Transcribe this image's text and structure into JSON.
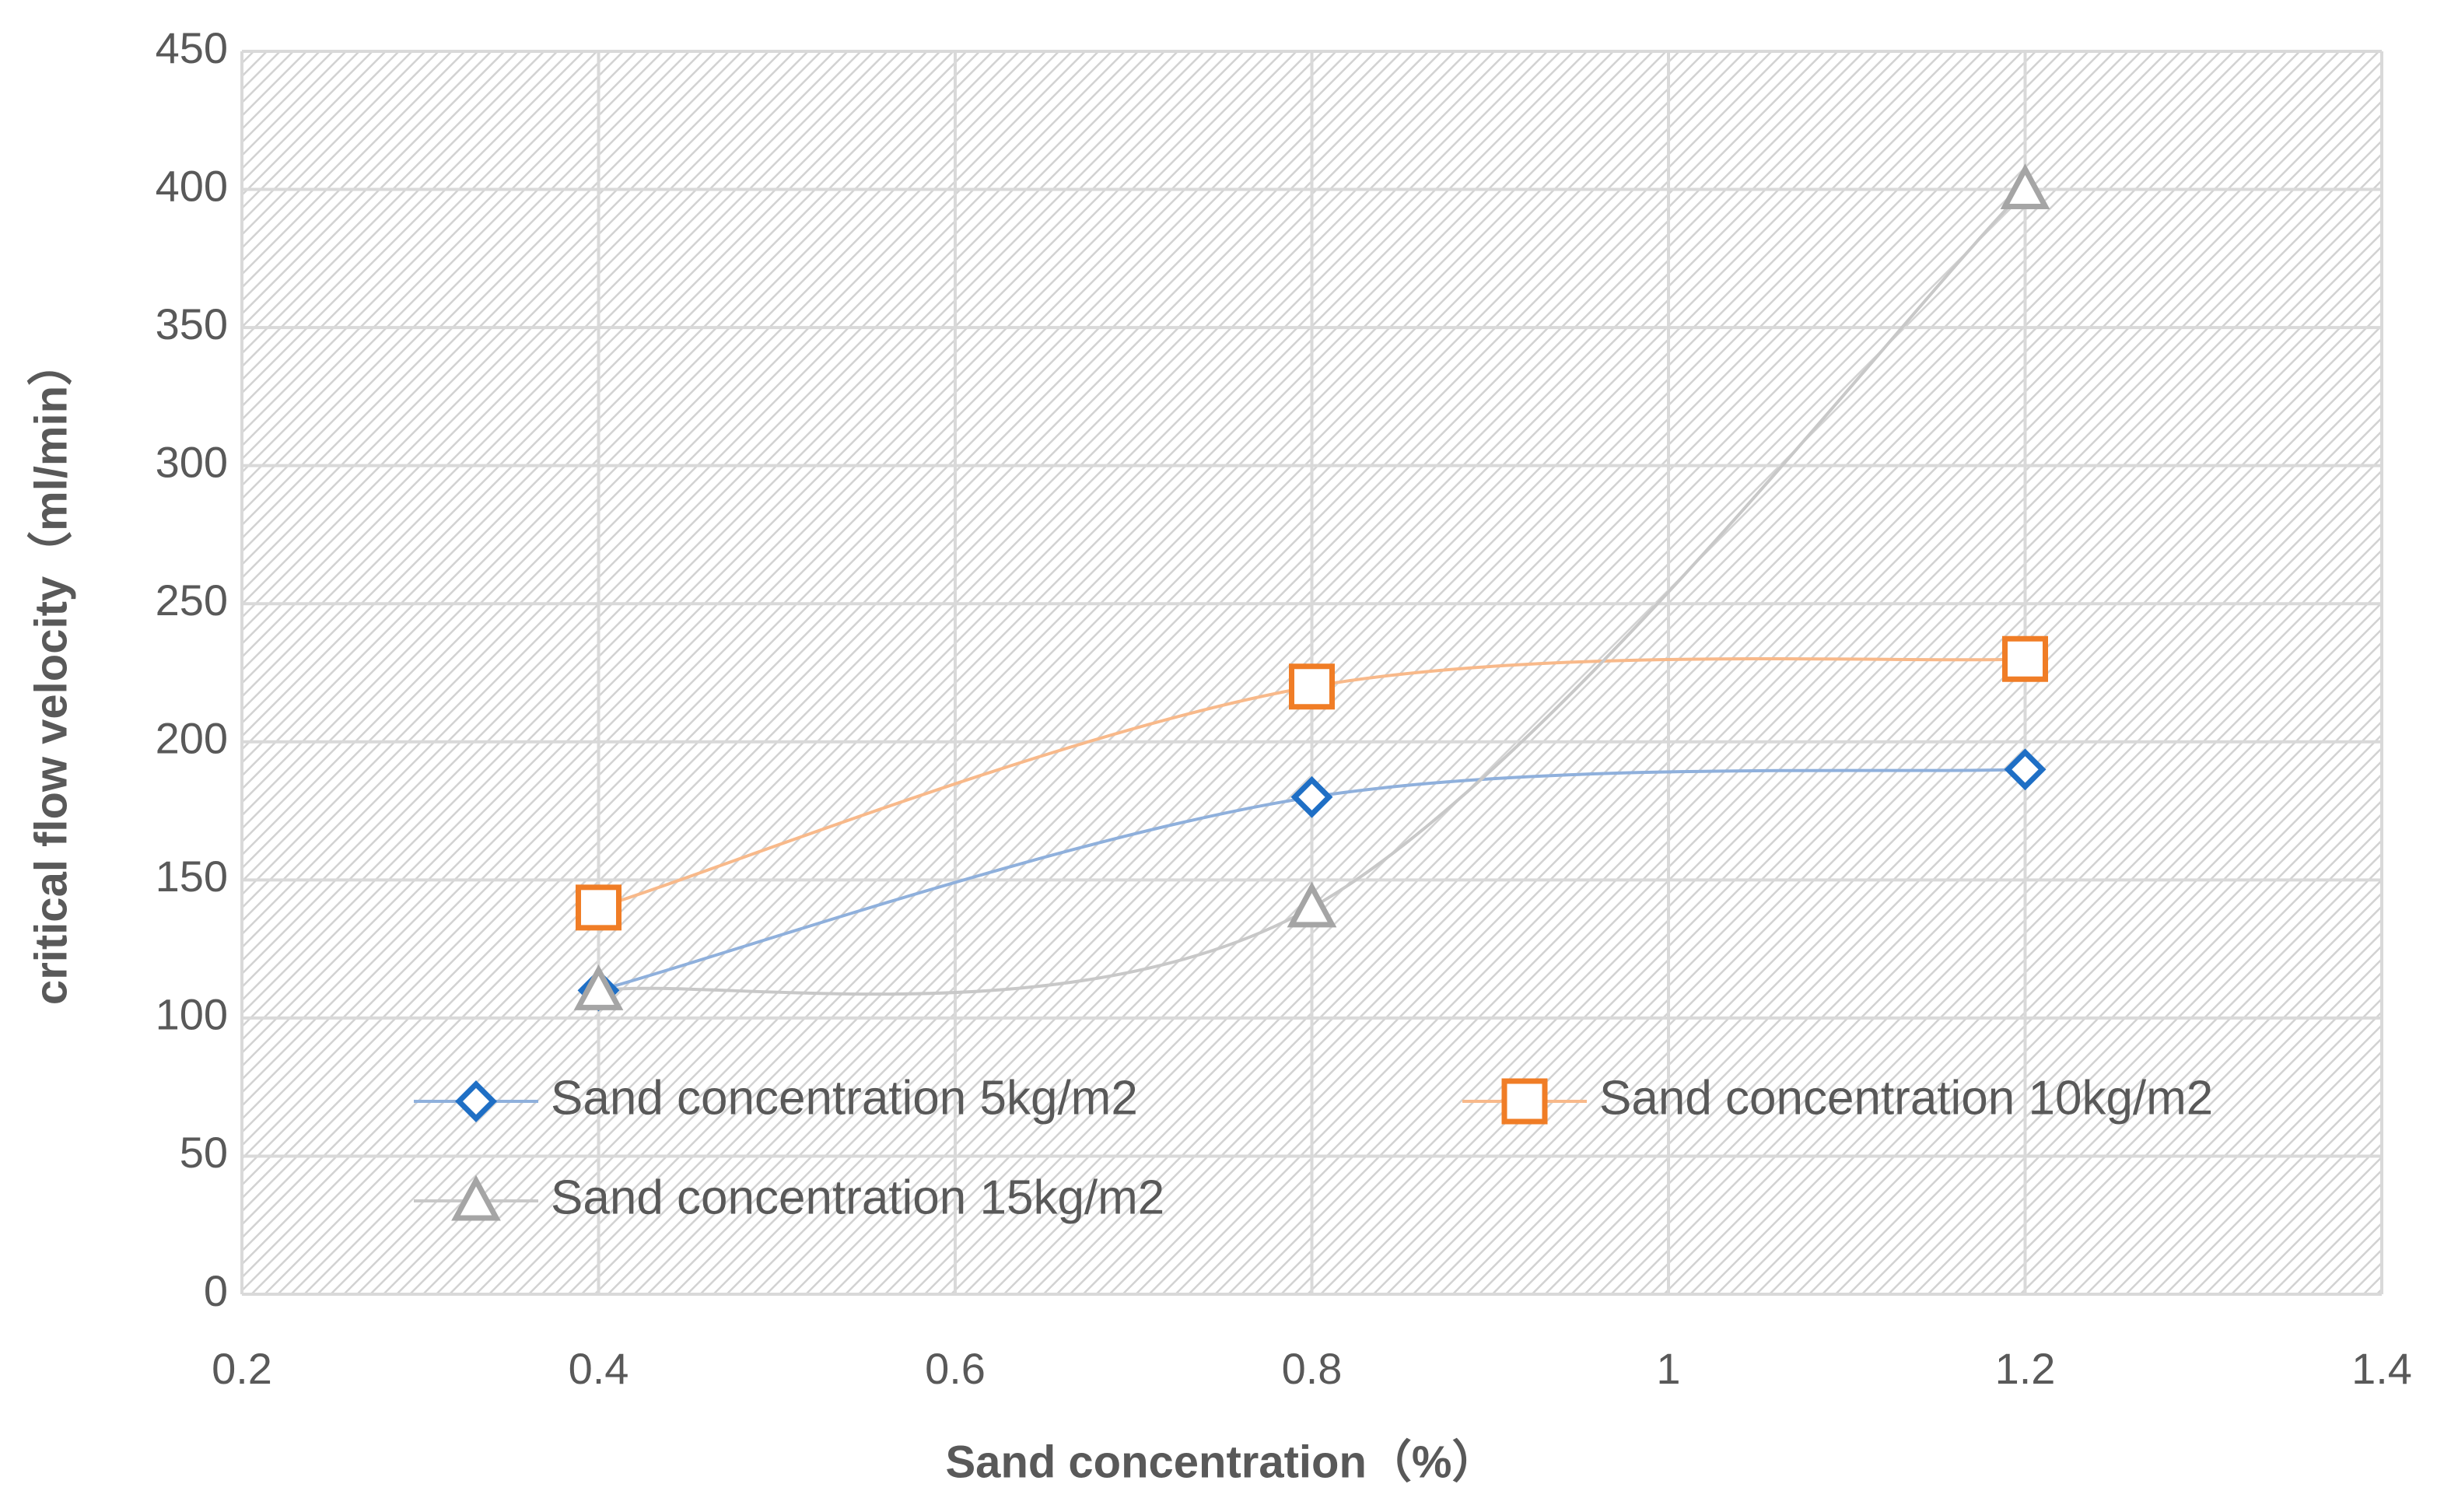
{
  "chart_data": {
    "type": "scatter",
    "x_label": "Sand concentration（%）",
    "y_label": "critical flow velocity（ml/min）",
    "x": [
      0.4,
      0.8,
      1.2
    ],
    "series": [
      {
        "name": "Sand concentration 5kg/m2",
        "color": "#1f6fc5",
        "line_color": "#8fb0dc",
        "marker": "diamond",
        "values": [
          110,
          180,
          190
        ]
      },
      {
        "name": "Sand concentration 10kg/m2",
        "color": "#f07d26",
        "line_color": "#f8b98a",
        "marker": "square",
        "values": [
          140,
          220,
          230
        ]
      },
      {
        "name": "Sand concentration 15kg/m2",
        "color": "#a5a5a5",
        "line_color": "#c8c8c8",
        "marker": "triangle",
        "values": [
          110,
          140,
          400
        ]
      }
    ],
    "xlim": [
      0.2,
      1.4
    ],
    "xticks": [
      0.2,
      0.4,
      0.6,
      0.8,
      1,
      1.2,
      1.4
    ],
    "ylim": [
      0,
      450
    ],
    "yticks": [
      0,
      50,
      100,
      150,
      200,
      250,
      300,
      350,
      400,
      450
    ],
    "grid": true,
    "smooth": true,
    "legend": "lower center"
  }
}
